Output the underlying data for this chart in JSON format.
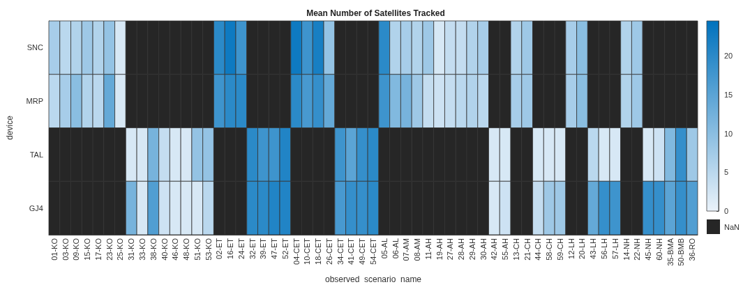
{
  "chart_data": {
    "type": "heatmap",
    "title": "Mean Number of Satellites Tracked",
    "xlabel": "observed  scenario  name",
    "ylabel": "device",
    "categories": [
      "01-KO",
      "03-KO",
      "09-KO",
      "15-KO",
      "17-KO",
      "23-KO",
      "25-KO",
      "31-KO",
      "33-KO",
      "38-KO",
      "40-KO",
      "46-KO",
      "48-KO",
      "51-KO",
      "53-KO",
      "02-ET",
      "16-ET",
      "24-ET",
      "32-ET",
      "39-ET",
      "47-ET",
      "52-ET",
      "04-CET",
      "10-CET",
      "18-CET",
      "26-CET",
      "34-CET",
      "41-CET",
      "49-CET",
      "54-CET",
      "05-AL",
      "06-AL",
      "07-AM",
      "08-AM",
      "11-AH",
      "19-AH",
      "27-AH",
      "28-AH",
      "29-AH",
      "30-AH",
      "42-AH",
      "55-AH",
      "13-CH",
      "21-CH",
      "44-CH",
      "58-CH",
      "59-CH",
      "12-LH",
      "20-LH",
      "43-LH",
      "56-LH",
      "57-LH",
      "14-NH",
      "22-NH",
      "45-NH",
      "60-NH",
      "35-BMA",
      "50-BMB",
      "36-RO"
    ],
    "y_categories": [
      "SNC",
      "MRP",
      "TAL",
      "GJ4"
    ],
    "cells": [
      [
        7,
        5,
        6,
        8,
        6,
        9,
        2,
        null,
        null,
        null,
        null,
        null,
        null,
        null,
        null,
        20,
        23,
        18,
        null,
        null,
        null,
        null,
        23,
        18,
        22,
        9,
        null,
        null,
        null,
        null,
        20,
        6,
        7,
        6,
        8,
        2,
        4,
        4,
        6,
        7,
        null,
        null,
        6,
        8,
        null,
        null,
        null,
        7,
        10,
        null,
        null,
        null,
        6,
        8,
        null,
        null,
        null,
        null,
        null
      ],
      [
        5,
        7,
        10,
        6,
        5,
        14,
        2,
        null,
        null,
        null,
        null,
        null,
        null,
        null,
        null,
        18,
        20,
        20,
        null,
        null,
        null,
        null,
        20,
        17,
        19,
        14,
        null,
        null,
        null,
        null,
        18,
        11,
        12,
        8,
        4,
        3,
        4,
        5,
        6,
        5,
        null,
        null,
        7,
        8,
        null,
        null,
        null,
        7,
        10,
        null,
        null,
        null,
        6,
        8,
        null,
        null,
        null,
        null,
        null
      ],
      [
        null,
        null,
        null,
        null,
        null,
        null,
        null,
        2,
        2,
        12,
        4,
        2,
        2,
        9,
        9,
        null,
        null,
        null,
        20,
        18,
        18,
        21,
        null,
        null,
        null,
        null,
        18,
        15,
        19,
        20,
        null,
        null,
        null,
        null,
        null,
        null,
        null,
        null,
        null,
        null,
        2,
        2,
        null,
        null,
        2,
        2,
        2,
        null,
        null,
        5,
        2,
        2,
        null,
        null,
        2,
        3,
        11,
        19,
        8
      ],
      [
        null,
        null,
        null,
        null,
        null,
        null,
        null,
        12,
        2,
        16,
        3,
        2,
        2,
        2,
        5,
        null,
        null,
        null,
        20,
        20,
        21,
        21,
        null,
        null,
        null,
        null,
        17,
        19,
        19,
        20,
        null,
        null,
        null,
        null,
        null,
        null,
        null,
        null,
        null,
        null,
        2,
        3,
        null,
        null,
        4,
        8,
        8,
        null,
        null,
        14,
        19,
        18,
        null,
        null,
        19,
        19,
        15,
        19,
        16
      ]
    ],
    "clim": [
      0,
      24.5
    ],
    "cticks": [
      0,
      5,
      10,
      15,
      20
    ],
    "annotations": [
      "NaN"
    ]
  }
}
